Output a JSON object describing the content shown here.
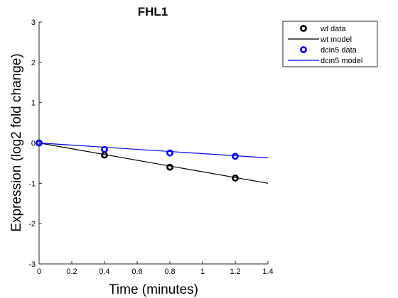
{
  "chart_data": {
    "type": "line",
    "title": "FHL1",
    "xlabel": "Time (minutes)",
    "ylabel": "Expression (log2 fold change)",
    "xlim": [
      0,
      1.4
    ],
    "ylim": [
      -3,
      3
    ],
    "x_ticks": [
      "0",
      "0.2",
      "0.4",
      "0.6",
      "0.8",
      "1",
      "1.2",
      "1.4"
    ],
    "y_ticks": [
      "-3",
      "-2",
      "-1",
      "0",
      "1",
      "2",
      "3"
    ],
    "grid": false,
    "legend_position": "outside top-right",
    "series": [
      {
        "name": "wt data",
        "kind": "scatter",
        "color": "#000000",
        "marker": "circle",
        "points": [
          [
            0,
            0
          ],
          [
            0.4,
            -0.3
          ],
          [
            0.8,
            -0.6
          ],
          [
            1.2,
            -0.87
          ]
        ]
      },
      {
        "name": "wt model",
        "kind": "line",
        "color": "#000000",
        "points": [
          [
            0,
            0
          ],
          [
            1.4,
            -1.0
          ]
        ]
      },
      {
        "name": "dcin5 data",
        "kind": "scatter",
        "color": "#0000ff",
        "marker": "circle",
        "points": [
          [
            0,
            0
          ],
          [
            0.4,
            -0.16
          ],
          [
            0.8,
            -0.25
          ],
          [
            1.2,
            -0.33
          ]
        ]
      },
      {
        "name": "dcin5 model",
        "kind": "line",
        "color": "#0000ff",
        "points": [
          [
            0,
            0
          ],
          [
            1.4,
            -0.37
          ]
        ]
      }
    ]
  }
}
